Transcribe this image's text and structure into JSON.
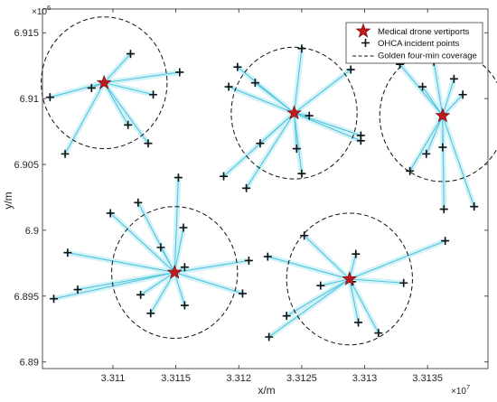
{
  "chart_data": {
    "type": "scatter",
    "xlabel": "x/m",
    "ylabel": "y/m",
    "x_multiplier": "×10",
    "x_multiplier_exp": "7",
    "y_multiplier": "×10",
    "y_multiplier_exp": "6",
    "xlim": [
      33104400,
      33139800
    ],
    "ylim": [
      6889500,
      6916800
    ],
    "xticks": [
      33110000,
      33115000,
      33120000,
      33125000,
      33130000,
      33135000
    ],
    "xtick_labels": [
      "3.311",
      "3.3115",
      "3.312",
      "3.3125",
      "3.313",
      "3.3135"
    ],
    "yticks": [
      6890000,
      6895000,
      6900000,
      6905000,
      6910000,
      6915000
    ],
    "ytick_labels": [
      "6.89",
      "6.895",
      "6.9",
      "6.905",
      "6.91",
      "6.915"
    ],
    "coverage_radius": 5000,
    "legend": {
      "placement": "top-right",
      "entries": [
        {
          "label": "Medical drone vertiports",
          "marker": "star"
        },
        {
          "label": "OHCA incident points",
          "marker": "plus"
        },
        {
          "label": "Golden four-min coverage",
          "marker": "dashed-circle"
        }
      ]
    },
    "colors": {
      "vertiport": "#c0191e",
      "vertiport_edge": "#6e0d0f",
      "link": "#4fc6de",
      "link_halo": "#d3f2f8",
      "incident": "#111111",
      "circle": "#111111"
    },
    "series": [
      {
        "name": "Medical drone vertiports",
        "points": [
          [
            33109300,
            6911200
          ],
          [
            33114900,
            6896800
          ],
          [
            33124400,
            6908900
          ],
          [
            33128800,
            6896300
          ],
          [
            33136200,
            6908700
          ]
        ]
      },
      {
        "name": "OHCA incident points",
        "points": [
          [
            33105000,
            6910100
          ],
          [
            33106200,
            6905800
          ],
          [
            33108300,
            6910800
          ],
          [
            33111400,
            6913400
          ],
          [
            33111200,
            6908000
          ],
          [
            33112800,
            6906600
          ],
          [
            33113200,
            6910300
          ],
          [
            33115300,
            6912000
          ],
          [
            33105300,
            6894800
          ],
          [
            33106400,
            6898300
          ],
          [
            33107200,
            6895500
          ],
          [
            33109800,
            6901300
          ],
          [
            33112000,
            6902100
          ],
          [
            33112200,
            6895100
          ],
          [
            33113000,
            6893700
          ],
          [
            33113800,
            6898700
          ],
          [
            33115200,
            6904000
          ],
          [
            33115600,
            6900200
          ],
          [
            33115700,
            6897200
          ],
          [
            33115700,
            6894300
          ],
          [
            33120300,
            6895200
          ],
          [
            33120800,
            6897700
          ],
          [
            33118800,
            6904100
          ],
          [
            33119200,
            6910900
          ],
          [
            33119900,
            6912400
          ],
          [
            33120600,
            6903200
          ],
          [
            33121300,
            6911200
          ],
          [
            33121700,
            6906600
          ],
          [
            33124600,
            6906200
          ],
          [
            33125000,
            6913800
          ],
          [
            33125000,
            6904300
          ],
          [
            33125600,
            6908700
          ],
          [
            33128900,
            6912200
          ],
          [
            33129700,
            6907200
          ],
          [
            33129700,
            6906800
          ],
          [
            33122300,
            6898000
          ],
          [
            33122400,
            6891900
          ],
          [
            33123800,
            6893500
          ],
          [
            33125200,
            6899600
          ],
          [
            33126500,
            6895800
          ],
          [
            33129000,
            6896100
          ],
          [
            33129300,
            6898200
          ],
          [
            33129500,
            6893000
          ],
          [
            33131100,
            6892200
          ],
          [
            33133100,
            6896000
          ],
          [
            33136400,
            6899200
          ],
          [
            33132800,
            6912600
          ],
          [
            33133600,
            6904500
          ],
          [
            33134600,
            6910900
          ],
          [
            33134900,
            6905800
          ],
          [
            33135500,
            6912800
          ],
          [
            33136200,
            6906300
          ],
          [
            33136300,
            6901600
          ],
          [
            33137100,
            6911500
          ],
          [
            33137800,
            6910300
          ],
          [
            33138700,
            6901800
          ]
        ]
      }
    ],
    "links": [
      {
        "from": 0,
        "to": [
          0,
          1,
          2,
          3,
          4,
          5,
          6,
          7
        ]
      },
      {
        "from": 1,
        "to": [
          8,
          9,
          10,
          11,
          12,
          13,
          14,
          15,
          16,
          17,
          18,
          19,
          20,
          21
        ]
      },
      {
        "from": 2,
        "to": [
          22,
          23,
          24,
          25,
          26,
          27,
          28,
          29,
          30,
          31,
          32,
          33,
          34
        ]
      },
      {
        "from": 3,
        "to": [
          35,
          36,
          37,
          38,
          39,
          40,
          41,
          42,
          43,
          44,
          45
        ]
      },
      {
        "from": 4,
        "to": [
          46,
          47,
          48,
          49,
          50,
          51,
          52,
          53,
          54,
          55
        ]
      }
    ]
  }
}
